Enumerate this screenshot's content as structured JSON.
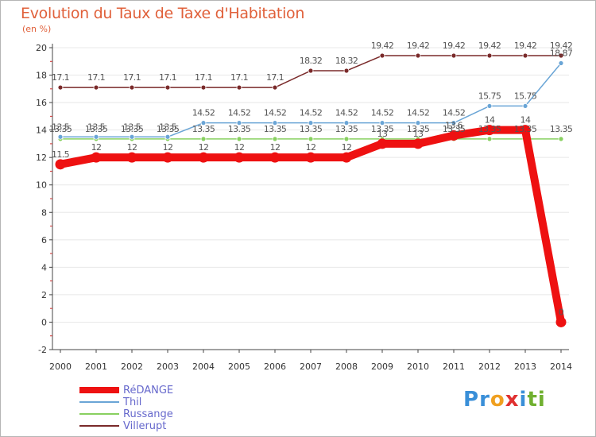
{
  "title": "Evolution du Taux de Taxe d'Habitation",
  "unit_label": "(en %)",
  "brand": {
    "letters": [
      "P",
      "r",
      "o",
      "x",
      "i",
      "t",
      "i"
    ],
    "colors": [
      "#3a8fd8",
      "#3a8fd8",
      "#f0a020",
      "#e03030",
      "#3a8fd8",
      "#70b030",
      "#70b030"
    ]
  },
  "chart_data": {
    "type": "line",
    "title": "Evolution du Taux de Taxe d'Habitation",
    "ylabel": "(en %)",
    "xlabel": "",
    "ylim": [
      -2,
      20
    ],
    "yticks": [
      "-2",
      "0",
      "2",
      "4",
      "6",
      "8",
      "10",
      "12",
      "14",
      "16",
      "18",
      "20"
    ],
    "x": [
      "2000",
      "2001",
      "2002",
      "2003",
      "2004",
      "2005",
      "2006",
      "2007",
      "2008",
      "2009",
      "2010",
      "2011",
      "2012",
      "2013",
      "2014"
    ],
    "series": [
      {
        "name": "RéDANGE",
        "color": "#ee1111",
        "values": [
          11.5,
          12,
          12,
          12,
          12,
          12,
          12,
          12,
          12,
          13,
          13,
          13.6,
          14,
          14,
          0
        ],
        "labels": [
          "11.5",
          "12",
          "12",
          "12",
          "12",
          "12",
          "12",
          "12",
          "12",
          "13",
          "13",
          "13.6",
          "14",
          "14",
          "0"
        ]
      },
      {
        "name": "Thil",
        "color": "#6aa5d6",
        "values": [
          13.5,
          13.5,
          13.5,
          13.5,
          14.52,
          14.52,
          14.52,
          14.52,
          14.52,
          14.52,
          14.52,
          14.52,
          15.75,
          15.75,
          18.87
        ],
        "labels": [
          "13.5",
          "13.5",
          "13.5",
          "13.5",
          "14.52",
          "14.52",
          "14.52",
          "14.52",
          "14.52",
          "14.52",
          "14.52",
          "14.52",
          "15.75",
          "15.75",
          "18.87"
        ]
      },
      {
        "name": "Russange",
        "color": "#88d060",
        "values": [
          13.35,
          13.35,
          13.35,
          13.35,
          13.35,
          13.35,
          13.35,
          13.35,
          13.35,
          13.35,
          13.35,
          13.35,
          13.35,
          13.35,
          13.35
        ],
        "labels": [
          "13.35",
          "13.35",
          "13.35",
          "13.35",
          "13.35",
          "13.35",
          "13.35",
          "13.35",
          "13.35",
          "13.35",
          "13.35",
          "13.35",
          "13.35",
          "13.35",
          "13.35"
        ]
      },
      {
        "name": "Villerupt",
        "color": "#7a2a2a",
        "values": [
          17.1,
          17.1,
          17.1,
          17.1,
          17.1,
          17.1,
          17.1,
          18.32,
          18.32,
          19.42,
          19.42,
          19.42,
          19.42,
          19.42,
          19.42
        ],
        "labels": [
          "17.1",
          "17.1",
          "17.1",
          "17.1",
          "17.1",
          "17.1",
          "17.1",
          "18.32",
          "18.32",
          "19.42",
          "19.42",
          "19.42",
          "19.42",
          "19.42",
          "19.42"
        ]
      }
    ]
  }
}
